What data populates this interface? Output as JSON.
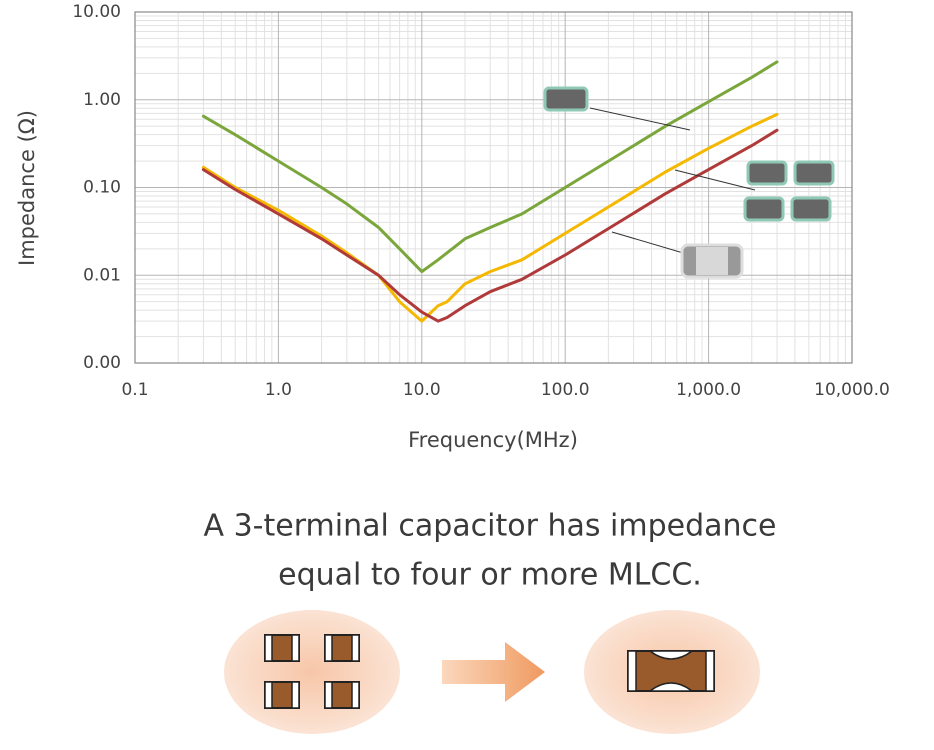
{
  "chart_data": {
    "type": "line",
    "xlabel": "Frequency(MHz)",
    "ylabel": "Impedance (Ω)",
    "xlog": true,
    "ylog": true,
    "grid": true,
    "xlim": [
      0.1,
      10000
    ],
    "ylim": [
      0.001,
      10
    ],
    "xticks": [
      0.1,
      {
        "value": 1,
        "label": "1.0"
      },
      {
        "value": 10,
        "label": "10.0"
      },
      {
        "value": 100,
        "label": "100.0"
      },
      {
        "value": 1000,
        "label": "1,000.0"
      },
      {
        "value": 10000,
        "label": "10,000.0"
      }
    ],
    "yticks": [
      {
        "value": 10,
        "label": "10.00"
      },
      {
        "value": 1,
        "label": "1.00"
      },
      {
        "value": 0.1,
        "label": "0.10"
      },
      {
        "value": 0.01,
        "label": "0.01"
      },
      {
        "value": 0.001,
        "label": "0.00"
      }
    ],
    "x": [
      0.3,
      0.5,
      1,
      2,
      3,
      5,
      7,
      10,
      13,
      15,
      20,
      30,
      50,
      100,
      200,
      500,
      1000,
      2000,
      3000
    ],
    "series": [
      {
        "color": "#7aa63c",
        "values": [
          0.65,
          0.4,
          0.2,
          0.1,
          0.065,
          0.035,
          0.02,
          0.011,
          0.015,
          0.018,
          0.026,
          0.035,
          0.05,
          0.1,
          0.2,
          0.5,
          0.95,
          1.8,
          2.7
        ]
      },
      {
        "color": "#f5b800",
        "values": [
          0.17,
          0.1,
          0.055,
          0.028,
          0.018,
          0.01,
          0.005,
          0.003,
          0.0045,
          0.005,
          0.008,
          0.011,
          0.015,
          0.03,
          0.06,
          0.15,
          0.28,
          0.5,
          0.68
        ]
      },
      {
        "color": "#b03a3a",
        "values": [
          0.16,
          0.095,
          0.05,
          0.026,
          0.017,
          0.01,
          0.006,
          0.0038,
          0.003,
          0.0033,
          0.0045,
          0.0065,
          0.009,
          0.017,
          0.034,
          0.085,
          0.16,
          0.3,
          0.45
        ]
      }
    ],
    "caption": [
      "A 3-terminal capacitor has impedance",
      "equal to four or more MLCC."
    ]
  }
}
